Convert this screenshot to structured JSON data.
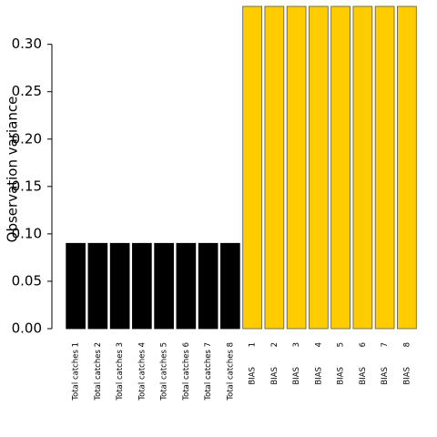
{
  "chart_data": {
    "type": "bar",
    "ylabel": "Observation variance",
    "categories": [
      "Total catches 1",
      "Total catches 2",
      "Total catches 3",
      "Total catches 4",
      "Total catches 5",
      "Total catches 6",
      "Total catches 7",
      "Total catches 8",
      "BIAS        1",
      "BIAS        2",
      "BIAS        3",
      "BIAS        4",
      "BIAS        5",
      "BIAS        6",
      "BIAS        7",
      "BIAS        8"
    ],
    "values": [
      0.09,
      0.09,
      0.09,
      0.09,
      0.09,
      0.09,
      0.09,
      0.09,
      0.34,
      0.34,
      0.34,
      0.34,
      0.34,
      0.34,
      0.34,
      0.34
    ],
    "colors": [
      "#000000",
      "#000000",
      "#000000",
      "#000000",
      "#000000",
      "#000000",
      "#000000",
      "#000000",
      "#ffcc00",
      "#ffcc00",
      "#ffcc00",
      "#ffcc00",
      "#ffcc00",
      "#ffcc00",
      "#ffcc00",
      "#ffcc00"
    ],
    "ylim": [
      0,
      0.34
    ],
    "yticks": [
      {
        "value": 0,
        "label": "0.00"
      },
      {
        "value": 0.05,
        "label": "0.05"
      },
      {
        "value": 0.1,
        "label": "0.10"
      },
      {
        "value": 0.15,
        "label": "0.15"
      },
      {
        "value": 0.2,
        "label": "0.20"
      },
      {
        "value": 0.25,
        "label": "0.25"
      },
      {
        "value": 0.3,
        "label": "0.30"
      }
    ]
  }
}
